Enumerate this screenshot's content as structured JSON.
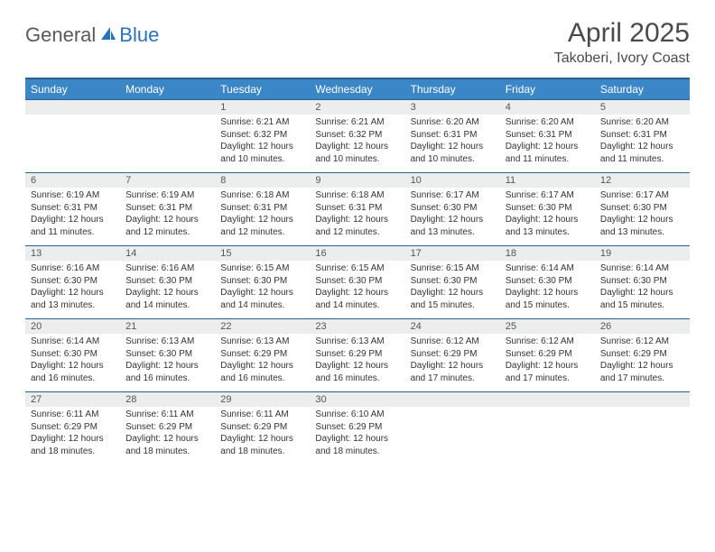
{
  "logo": {
    "text1": "General",
    "text2": "Blue"
  },
  "title": "April 2025",
  "location": "Takoberi, Ivory Coast",
  "colors": {
    "header_bg": "#3b86c6",
    "header_border": "#2a5f8f",
    "daynum_bg": "#eceded",
    "logo_gray": "#5a5a5a",
    "logo_blue": "#2a73b8",
    "text": "#333333"
  },
  "weekdays": [
    "Sunday",
    "Monday",
    "Tuesday",
    "Wednesday",
    "Thursday",
    "Friday",
    "Saturday"
  ],
  "weeks": [
    {
      "nums": [
        "",
        "",
        "1",
        "2",
        "3",
        "4",
        "5"
      ],
      "cells": [
        null,
        null,
        {
          "sr": "Sunrise: 6:21 AM",
          "ss": "Sunset: 6:32 PM",
          "dl1": "Daylight: 12 hours",
          "dl2": "and 10 minutes."
        },
        {
          "sr": "Sunrise: 6:21 AM",
          "ss": "Sunset: 6:32 PM",
          "dl1": "Daylight: 12 hours",
          "dl2": "and 10 minutes."
        },
        {
          "sr": "Sunrise: 6:20 AM",
          "ss": "Sunset: 6:31 PM",
          "dl1": "Daylight: 12 hours",
          "dl2": "and 10 minutes."
        },
        {
          "sr": "Sunrise: 6:20 AM",
          "ss": "Sunset: 6:31 PM",
          "dl1": "Daylight: 12 hours",
          "dl2": "and 11 minutes."
        },
        {
          "sr": "Sunrise: 6:20 AM",
          "ss": "Sunset: 6:31 PM",
          "dl1": "Daylight: 12 hours",
          "dl2": "and 11 minutes."
        }
      ]
    },
    {
      "nums": [
        "6",
        "7",
        "8",
        "9",
        "10",
        "11",
        "12"
      ],
      "cells": [
        {
          "sr": "Sunrise: 6:19 AM",
          "ss": "Sunset: 6:31 PM",
          "dl1": "Daylight: 12 hours",
          "dl2": "and 11 minutes."
        },
        {
          "sr": "Sunrise: 6:19 AM",
          "ss": "Sunset: 6:31 PM",
          "dl1": "Daylight: 12 hours",
          "dl2": "and 12 minutes."
        },
        {
          "sr": "Sunrise: 6:18 AM",
          "ss": "Sunset: 6:31 PM",
          "dl1": "Daylight: 12 hours",
          "dl2": "and 12 minutes."
        },
        {
          "sr": "Sunrise: 6:18 AM",
          "ss": "Sunset: 6:31 PM",
          "dl1": "Daylight: 12 hours",
          "dl2": "and 12 minutes."
        },
        {
          "sr": "Sunrise: 6:17 AM",
          "ss": "Sunset: 6:30 PM",
          "dl1": "Daylight: 12 hours",
          "dl2": "and 13 minutes."
        },
        {
          "sr": "Sunrise: 6:17 AM",
          "ss": "Sunset: 6:30 PM",
          "dl1": "Daylight: 12 hours",
          "dl2": "and 13 minutes."
        },
        {
          "sr": "Sunrise: 6:17 AM",
          "ss": "Sunset: 6:30 PM",
          "dl1": "Daylight: 12 hours",
          "dl2": "and 13 minutes."
        }
      ]
    },
    {
      "nums": [
        "13",
        "14",
        "15",
        "16",
        "17",
        "18",
        "19"
      ],
      "cells": [
        {
          "sr": "Sunrise: 6:16 AM",
          "ss": "Sunset: 6:30 PM",
          "dl1": "Daylight: 12 hours",
          "dl2": "and 13 minutes."
        },
        {
          "sr": "Sunrise: 6:16 AM",
          "ss": "Sunset: 6:30 PM",
          "dl1": "Daylight: 12 hours",
          "dl2": "and 14 minutes."
        },
        {
          "sr": "Sunrise: 6:15 AM",
          "ss": "Sunset: 6:30 PM",
          "dl1": "Daylight: 12 hours",
          "dl2": "and 14 minutes."
        },
        {
          "sr": "Sunrise: 6:15 AM",
          "ss": "Sunset: 6:30 PM",
          "dl1": "Daylight: 12 hours",
          "dl2": "and 14 minutes."
        },
        {
          "sr": "Sunrise: 6:15 AM",
          "ss": "Sunset: 6:30 PM",
          "dl1": "Daylight: 12 hours",
          "dl2": "and 15 minutes."
        },
        {
          "sr": "Sunrise: 6:14 AM",
          "ss": "Sunset: 6:30 PM",
          "dl1": "Daylight: 12 hours",
          "dl2": "and 15 minutes."
        },
        {
          "sr": "Sunrise: 6:14 AM",
          "ss": "Sunset: 6:30 PM",
          "dl1": "Daylight: 12 hours",
          "dl2": "and 15 minutes."
        }
      ]
    },
    {
      "nums": [
        "20",
        "21",
        "22",
        "23",
        "24",
        "25",
        "26"
      ],
      "cells": [
        {
          "sr": "Sunrise: 6:14 AM",
          "ss": "Sunset: 6:30 PM",
          "dl1": "Daylight: 12 hours",
          "dl2": "and 16 minutes."
        },
        {
          "sr": "Sunrise: 6:13 AM",
          "ss": "Sunset: 6:30 PM",
          "dl1": "Daylight: 12 hours",
          "dl2": "and 16 minutes."
        },
        {
          "sr": "Sunrise: 6:13 AM",
          "ss": "Sunset: 6:29 PM",
          "dl1": "Daylight: 12 hours",
          "dl2": "and 16 minutes."
        },
        {
          "sr": "Sunrise: 6:13 AM",
          "ss": "Sunset: 6:29 PM",
          "dl1": "Daylight: 12 hours",
          "dl2": "and 16 minutes."
        },
        {
          "sr": "Sunrise: 6:12 AM",
          "ss": "Sunset: 6:29 PM",
          "dl1": "Daylight: 12 hours",
          "dl2": "and 17 minutes."
        },
        {
          "sr": "Sunrise: 6:12 AM",
          "ss": "Sunset: 6:29 PM",
          "dl1": "Daylight: 12 hours",
          "dl2": "and 17 minutes."
        },
        {
          "sr": "Sunrise: 6:12 AM",
          "ss": "Sunset: 6:29 PM",
          "dl1": "Daylight: 12 hours",
          "dl2": "and 17 minutes."
        }
      ]
    },
    {
      "nums": [
        "27",
        "28",
        "29",
        "30",
        "",
        "",
        ""
      ],
      "cells": [
        {
          "sr": "Sunrise: 6:11 AM",
          "ss": "Sunset: 6:29 PM",
          "dl1": "Daylight: 12 hours",
          "dl2": "and 18 minutes."
        },
        {
          "sr": "Sunrise: 6:11 AM",
          "ss": "Sunset: 6:29 PM",
          "dl1": "Daylight: 12 hours",
          "dl2": "and 18 minutes."
        },
        {
          "sr": "Sunrise: 6:11 AM",
          "ss": "Sunset: 6:29 PM",
          "dl1": "Daylight: 12 hours",
          "dl2": "and 18 minutes."
        },
        {
          "sr": "Sunrise: 6:10 AM",
          "ss": "Sunset: 6:29 PM",
          "dl1": "Daylight: 12 hours",
          "dl2": "and 18 minutes."
        },
        null,
        null,
        null
      ]
    }
  ]
}
